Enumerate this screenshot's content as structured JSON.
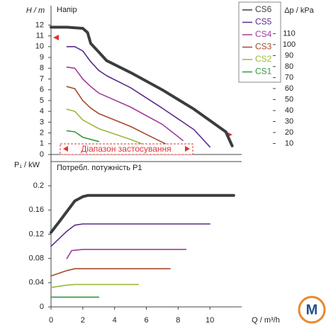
{
  "chart_data": [
    {
      "type": "line",
      "title": "Напір",
      "ylabel": "H / m",
      "y2label": "Δp / kPa",
      "annotation": "Діапазон застосування",
      "xlim": [
        0,
        12
      ],
      "ylim": [
        0,
        13.8
      ],
      "yticks": [
        0,
        1,
        2,
        3,
        4,
        5,
        6,
        7,
        8,
        9,
        10,
        11,
        12
      ],
      "y2lim": [
        0,
        135.4
      ],
      "y2ticks": [
        10,
        20,
        30,
        40,
        50,
        60,
        70,
        80,
        90,
        100,
        110
      ],
      "series": [
        {
          "name": "CS6",
          "color": "#3a3d40",
          "x": [
            0,
            1,
            2,
            2.3,
            2.5,
            3,
            3.5,
            5,
            7,
            9,
            11,
            11.4
          ],
          "values": [
            11.8,
            11.8,
            11.7,
            11.3,
            10.3,
            9.5,
            8.7,
            7.6,
            6,
            4.2,
            2.1,
            0.8
          ]
        },
        {
          "name": "CS5",
          "color": "#5a2a8a",
          "x": [
            1,
            1.5,
            2,
            2.5,
            3,
            3.5,
            5,
            7,
            9,
            10
          ],
          "values": [
            10,
            10,
            9.6,
            8.6,
            7.8,
            7.3,
            6.2,
            4.3,
            2.3,
            0.7
          ]
        },
        {
          "name": "CS4",
          "color": "#a03c9c",
          "x": [
            1,
            1.5,
            2,
            2.5,
            3,
            5,
            7,
            8.3
          ],
          "values": [
            8.1,
            8,
            7,
            6.3,
            5.7,
            4.4,
            2.8,
            1.3
          ]
        },
        {
          "name": "CS3",
          "color": "#a44a2e",
          "x": [
            1,
            1.5,
            2,
            2.5,
            3,
            5,
            6.5,
            7.2
          ],
          "values": [
            6.3,
            6.1,
            5,
            4.3,
            3.8,
            2.6,
            1.5,
            1
          ]
        },
        {
          "name": "CS2",
          "color": "#9ab83a",
          "x": [
            1,
            1.5,
            2,
            3,
            5,
            5.7
          ],
          "values": [
            4.2,
            4,
            3.2,
            2.4,
            1.4,
            1
          ]
        },
        {
          "name": "CS1",
          "color": "#2e9a3a",
          "x": [
            1,
            1.5,
            2,
            3
          ],
          "values": [
            2.2,
            2.1,
            1.6,
            1.2
          ]
        }
      ]
    },
    {
      "type": "line",
      "title": "Потребл. потужність P1",
      "ylabel": "P₁ / kW",
      "xlabel": "Q / m³/h",
      "xlim": [
        0,
        12
      ],
      "xticks": [
        0,
        2,
        4,
        6,
        8,
        10
      ],
      "ylim": [
        0,
        0.24
      ],
      "yticks": [
        0,
        0.04,
        0.08,
        0.12,
        0.16,
        0.2
      ],
      "series": [
        {
          "color": "#3a3d40",
          "x": [
            0,
            0.5,
            1.5,
            2,
            2.3,
            11.5
          ],
          "values": [
            0.123,
            0.14,
            0.175,
            0.182,
            0.184,
            0.184
          ]
        },
        {
          "color": "#5a2a8a",
          "x": [
            0,
            1,
            1.5,
            2,
            10
          ],
          "values": [
            0.1,
            0.125,
            0.135,
            0.137,
            0.137
          ]
        },
        {
          "color": "#a03c9c",
          "x": [
            1,
            1.3,
            2,
            8.5
          ],
          "values": [
            0.08,
            0.093,
            0.095,
            0.095
          ]
        },
        {
          "color": "#a44a2e",
          "x": [
            0,
            1,
            1.5,
            7.5
          ],
          "values": [
            0.051,
            0.06,
            0.063,
            0.063
          ]
        },
        {
          "color": "#9ab83a",
          "x": [
            0,
            1,
            1.5,
            5.5
          ],
          "values": [
            0.032,
            0.036,
            0.037,
            0.037
          ]
        },
        {
          "color": "#2e9a3a",
          "x": [
            0,
            3
          ],
          "values": [
            0.016,
            0.016
          ]
        }
      ]
    }
  ]
}
